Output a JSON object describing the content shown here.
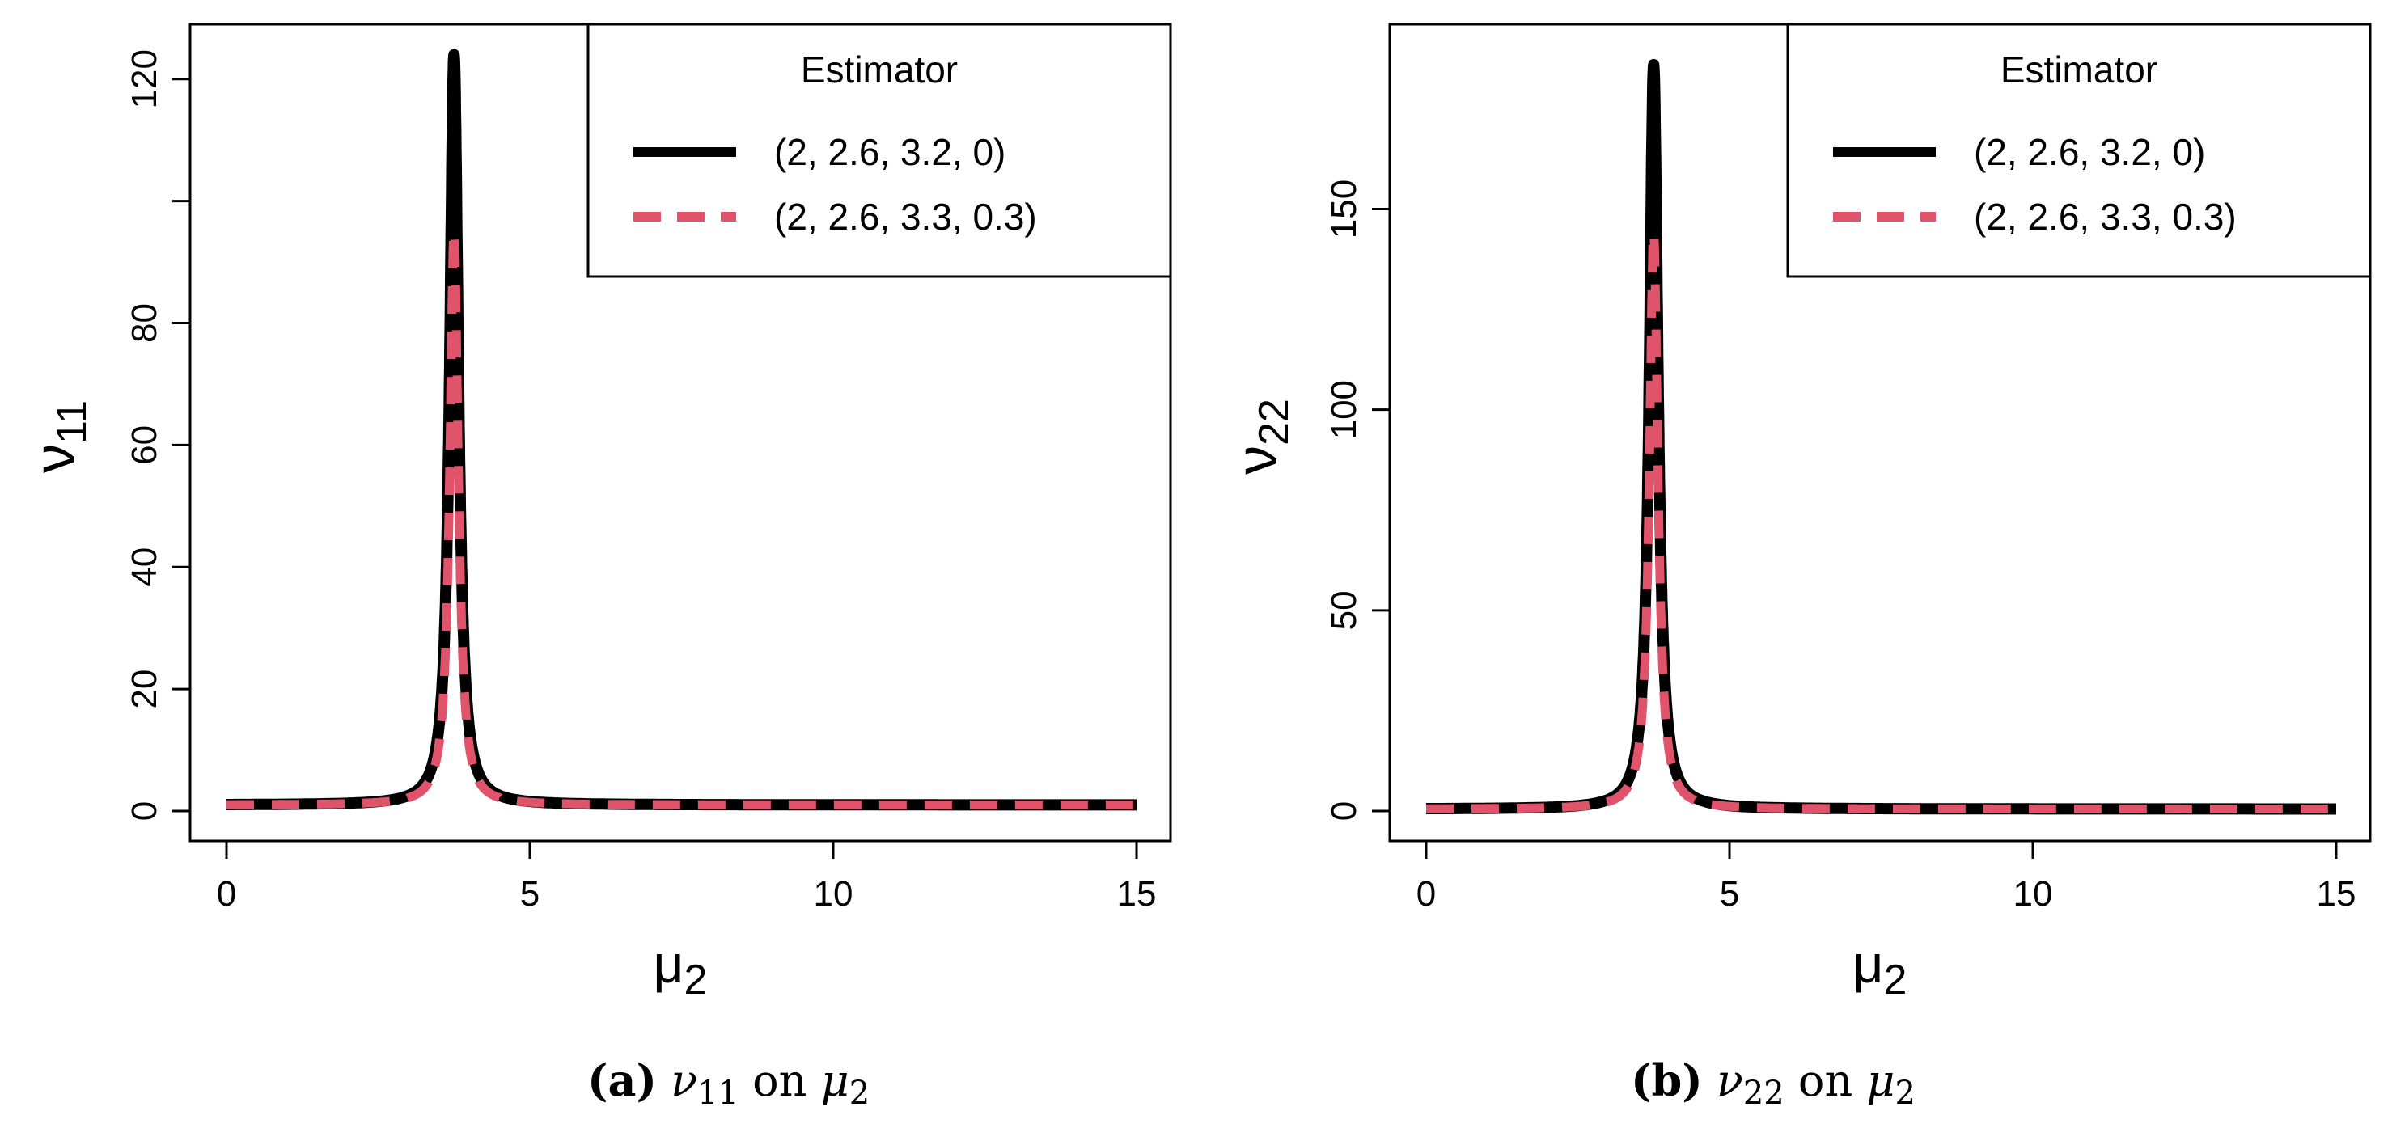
{
  "colors": {
    "series1": "#000000",
    "series2": "#DF536B",
    "axis": "#000000",
    "background": "#FFFFFF"
  },
  "chart_data": [
    {
      "type": "line",
      "panel_id": "a",
      "xlabel": "μ",
      "xlabel_sub": "2",
      "ylabel": "ν",
      "ylabel_sub": "11",
      "xlim": [
        0,
        15
      ],
      "ylim": [
        0,
        125
      ],
      "xticks": [
        0,
        5,
        10,
        15
      ],
      "yticks": [
        0,
        20,
        40,
        60,
        80,
        120
      ],
      "ytick_marks": [
        0,
        20,
        40,
        60,
        80,
        100,
        120
      ],
      "peak_x": 3.75,
      "peak_y": 124,
      "baseline": 1.0,
      "legend": {
        "title": "Estimator",
        "position": "top-right",
        "entries": [
          "(2, 2.6, 3.2, 0)",
          "(2, 2.6, 3.3, 0.3)"
        ]
      },
      "series": [
        {
          "name": "(2, 2.6, 3.2, 0)",
          "style": "solid",
          "x": [
            0,
            1,
            2,
            2.5,
            3,
            3.3,
            3.5,
            3.6,
            3.65,
            3.7,
            3.72,
            3.75,
            3.78,
            3.8,
            3.85,
            3.9,
            4.0,
            4.2,
            4.5,
            5,
            7,
            10,
            15
          ],
          "values": [
            1,
            1.3,
            2.1,
            3.3,
            6.5,
            12,
            22,
            35,
            50,
            80,
            105,
            124,
            100,
            70,
            35,
            18,
            8,
            3.5,
            2,
            1.5,
            1.2,
            1.1,
            1.0
          ]
        },
        {
          "name": "(2, 2.6, 3.3, 0.3)",
          "style": "dashed",
          "x": [
            0,
            1,
            2,
            2.5,
            3,
            3.3,
            3.5,
            3.6,
            3.65,
            3.7,
            3.72,
            3.75,
            3.78,
            3.8,
            3.85,
            3.9,
            4.0,
            4.2,
            4.5,
            5,
            7,
            10,
            15
          ],
          "values": [
            1,
            1.3,
            2.1,
            3.3,
            6.3,
            11,
            19,
            28,
            40,
            62,
            82,
            95,
            80,
            58,
            30,
            16,
            7,
            3.2,
            1.9,
            1.5,
            1.2,
            1.1,
            1.0
          ]
        }
      ]
    },
    {
      "type": "line",
      "panel_id": "b",
      "xlabel": "μ",
      "xlabel_sub": "2",
      "ylabel": "ν",
      "ylabel_sub": "22",
      "xlim": [
        0,
        15
      ],
      "ylim": [
        0,
        190
      ],
      "xticks": [
        0,
        5,
        10,
        15
      ],
      "yticks": [
        0,
        50,
        100,
        150
      ],
      "ytick_marks": [
        0,
        50,
        100,
        150
      ],
      "peak_x": 3.75,
      "peak_y": 186,
      "baseline": 0.5,
      "legend": {
        "title": "Estimator",
        "position": "top-right",
        "entries": [
          "(2, 2.6, 3.2, 0)",
          "(2, 2.6, 3.3, 0.3)"
        ]
      },
      "series": [
        {
          "name": "(2, 2.6, 3.2, 0)",
          "style": "solid",
          "x": [
            0,
            1,
            2,
            2.5,
            3,
            3.3,
            3.5,
            3.6,
            3.65,
            3.7,
            3.72,
            3.75,
            3.78,
            3.8,
            3.85,
            3.9,
            4.0,
            4.2,
            4.5,
            5,
            7,
            10,
            15
          ],
          "values": [
            0.5,
            0.8,
            2,
            4,
            9,
            17,
            32,
            52,
            75,
            120,
            158,
            186,
            150,
            105,
            52,
            26,
            11,
            4,
            1.8,
            1,
            0.7,
            0.6,
            0.5
          ]
        },
        {
          "name": "(2, 2.6, 3.3, 0.3)",
          "style": "dashed",
          "x": [
            0,
            1,
            2,
            2.5,
            3,
            3.3,
            3.5,
            3.6,
            3.65,
            3.7,
            3.72,
            3.75,
            3.78,
            3.8,
            3.85,
            3.9,
            4.0,
            4.2,
            4.5,
            5,
            7,
            10,
            15
          ],
          "values": [
            0.5,
            0.8,
            2,
            4,
            8.5,
            16,
            29,
            44,
            62,
            95,
            125,
            144,
            120,
            85,
            45,
            23,
            10,
            3.8,
            1.7,
            1,
            0.7,
            0.6,
            0.5
          ]
        }
      ]
    }
  ],
  "captions": [
    {
      "label": "(a)",
      "var": "ν",
      "var_sub": "11",
      "mid": " on ",
      "var2": "μ",
      "var2_sub": "2"
    },
    {
      "label": "(b)",
      "var": "ν",
      "var_sub": "22",
      "mid": " on ",
      "var2": "μ",
      "var2_sub": "2"
    }
  ]
}
